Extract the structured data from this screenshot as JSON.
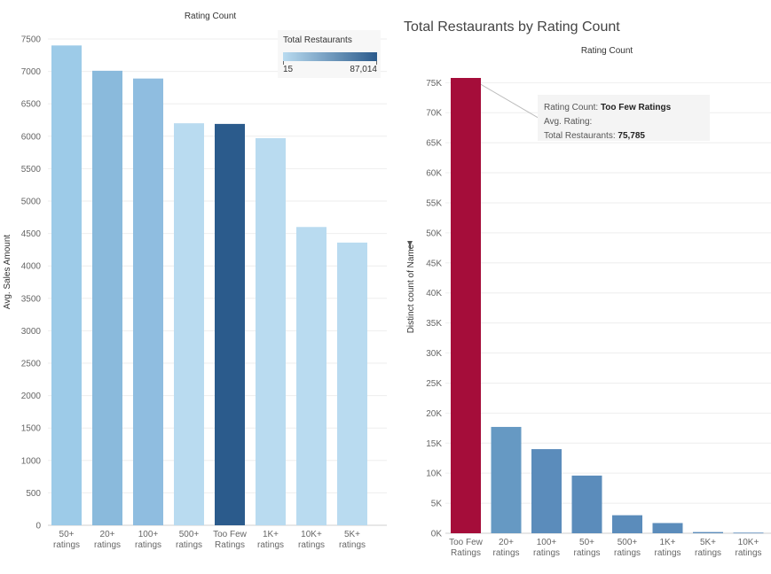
{
  "chart_data": [
    {
      "type": "bar",
      "title": "Rating Count",
      "xlabel": "",
      "ylabel": "Avg. Sales Amount",
      "categories": [
        "50+ ratings",
        "20+ ratings",
        "100+ ratings",
        "500+ ratings",
        "Too Few Ratings",
        "1K+ ratings",
        "10K+ ratings",
        "5K+ ratings"
      ],
      "values": [
        7400,
        7010,
        6890,
        6200,
        6190,
        5970,
        4600,
        4360
      ],
      "color_metric": "Total Restaurants",
      "bar_colors": [
        "#9dcbe8",
        "#8abadc",
        "#8fbde0",
        "#b9dbf0",
        "#2b5b8c",
        "#b9dbf0",
        "#b9dbf0",
        "#b9dbf0"
      ],
      "ylim": [
        0,
        7500
      ],
      "y_ticks": [
        0,
        500,
        1000,
        1500,
        2000,
        2500,
        3000,
        3500,
        4000,
        4500,
        5000,
        5500,
        6000,
        6500,
        7000,
        7500
      ],
      "grid": true,
      "legend": {
        "title": "Total Restaurants",
        "min_label": "15",
        "max_label": "87,014",
        "placement": "top-right"
      }
    },
    {
      "type": "bar",
      "title": "Total Restaurants by Rating Count",
      "subtitle": "Rating Count",
      "xlabel": "",
      "ylabel": "Distinct count of Name",
      "categories": [
        "Too Few Ratings",
        "20+ ratings",
        "100+ ratings",
        "50+ ratings",
        "500+ ratings",
        "1K+ ratings",
        "5K+ ratings",
        "10K+ ratings"
      ],
      "values": [
        75785,
        17700,
        14000,
        9600,
        3000,
        1700,
        200,
        100
      ],
      "bar_colors": [
        "#a50d3a",
        "#6699c3",
        "#5b8cbb",
        "#5b8cbb",
        "#5b8cbb",
        "#5b8cbb",
        "#5b8cbb",
        "#5b8cbb"
      ],
      "ylim": [
        0,
        75785
      ],
      "y_ticks": [
        0,
        5000,
        10000,
        15000,
        20000,
        25000,
        30000,
        35000,
        40000,
        45000,
        50000,
        55000,
        60000,
        65000,
        70000,
        75000
      ],
      "y_tick_labels": [
        "0K",
        "5K",
        "10K",
        "15K",
        "20K",
        "25K",
        "30K",
        "35K",
        "40K",
        "45K",
        "50K",
        "55K",
        "60K",
        "65K",
        "70K",
        "75K"
      ],
      "grid": true,
      "tooltip": {
        "rating_count_label": "Rating Count:",
        "rating_count_value": "Too Few Ratings",
        "avg_rating_label": "Avg. Rating:",
        "total_label": "Total Restaurants:",
        "total_value": "75,785"
      }
    }
  ]
}
